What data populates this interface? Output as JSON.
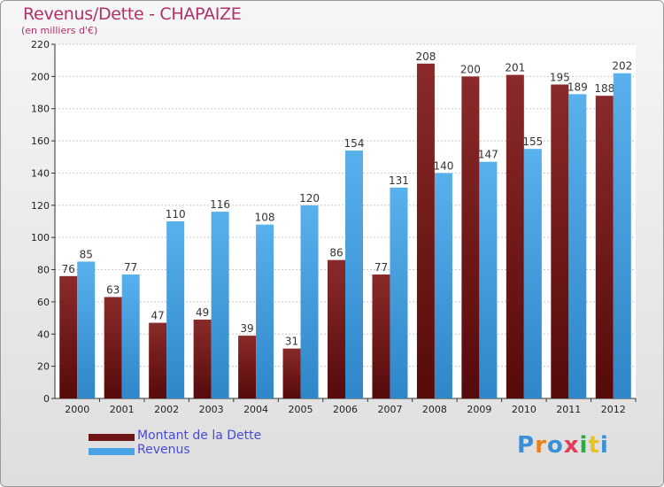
{
  "header": {
    "title": "Revenus/Dette - CHAPAIZE",
    "subtitle": "(en milliers d'€)"
  },
  "logo": {
    "text": "Proxiti",
    "letters": [
      "P",
      "r",
      "o",
      "x",
      "i",
      "t",
      "i"
    ],
    "colors": [
      "#3a8fd6",
      "#e8821e",
      "#3a8fd6",
      "#e23c5a",
      "#2fa84a",
      "#e8c21e",
      "#3a8fd6"
    ]
  },
  "colors": {
    "dette": "#6e1515",
    "revenus": "#4aa3e4",
    "grid": "#c8c8c8",
    "axis": "#333333",
    "label": "#222222"
  },
  "chart_data": {
    "type": "bar",
    "title": "Revenus/Dette - CHAPAIZE",
    "ylabel": "(en milliers d'€)",
    "ylim": [
      0,
      220
    ],
    "yticks": [
      0,
      20,
      40,
      60,
      80,
      100,
      120,
      140,
      160,
      180,
      200,
      220
    ],
    "grid": true,
    "legend_position": "bottom-left",
    "categories": [
      "2000",
      "2001",
      "2002",
      "2003",
      "2004",
      "2005",
      "2006",
      "2007",
      "2008",
      "2009",
      "2010",
      "2011",
      "2012"
    ],
    "series": [
      {
        "name": "Montant de la Dette",
        "values": [
          76,
          63,
          47,
          49,
          39,
          31,
          86,
          77,
          208,
          200,
          201,
          195,
          188
        ]
      },
      {
        "name": "Revenus",
        "values": [
          85,
          77,
          110,
          116,
          108,
          120,
          154,
          131,
          140,
          147,
          155,
          189,
          202
        ]
      }
    ]
  }
}
